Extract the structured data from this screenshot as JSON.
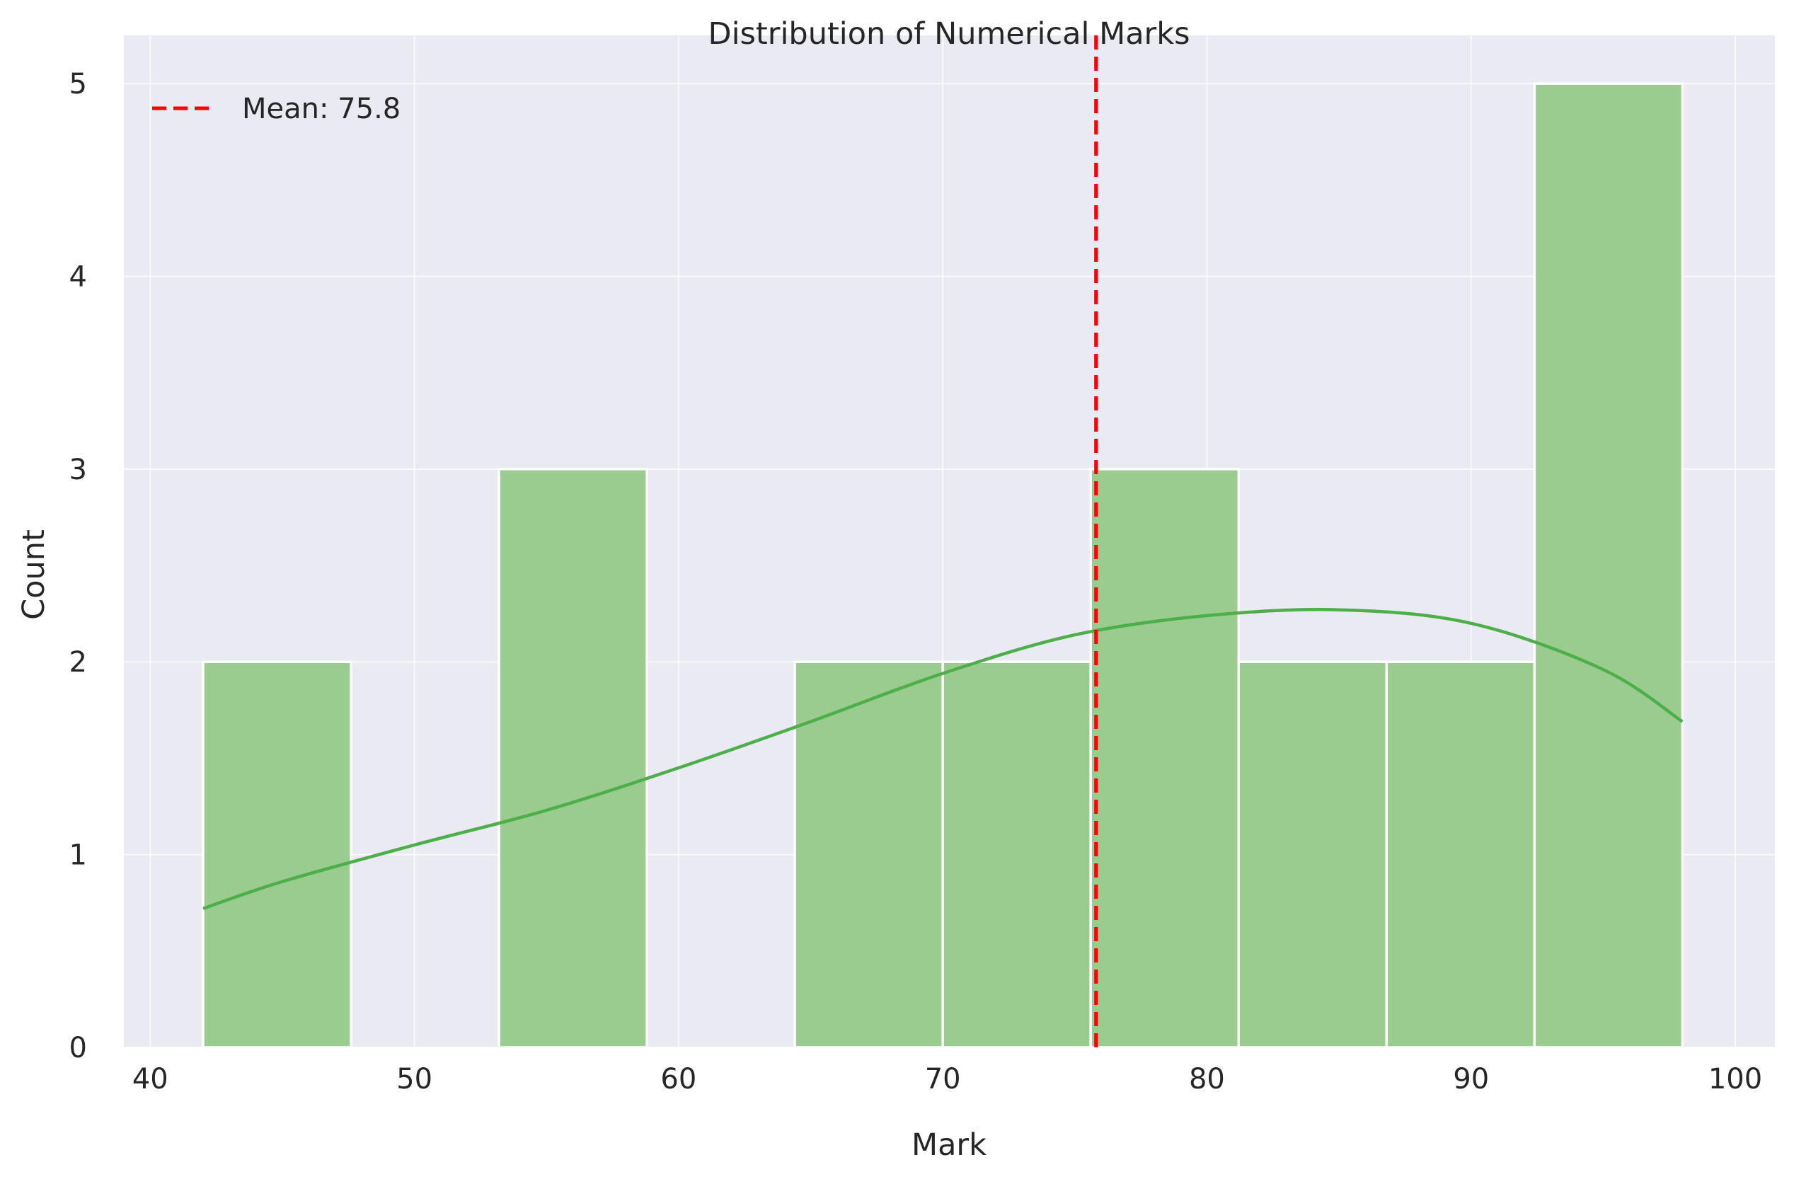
{
  "chart_data": {
    "type": "bar",
    "subtype": "histogram with kde",
    "title": "Distribution of Numerical Marks",
    "xlabel": "Mark",
    "ylabel": "Count",
    "xlim": [
      39,
      101.5
    ],
    "ylim": [
      0,
      5.25
    ],
    "xticks": [
      40,
      50,
      60,
      70,
      80,
      90,
      100
    ],
    "yticks": [
      0,
      1,
      2,
      3,
      4,
      5
    ],
    "grid": true,
    "legend_position": "upper-left",
    "bins": [
      {
        "start": 42.0,
        "end": 47.6,
        "count": 2
      },
      {
        "start": 47.6,
        "end": 53.2,
        "count": 0
      },
      {
        "start": 53.2,
        "end": 58.8,
        "count": 3
      },
      {
        "start": 58.8,
        "end": 64.4,
        "count": 0
      },
      {
        "start": 64.4,
        "end": 70.0,
        "count": 2
      },
      {
        "start": 70.0,
        "end": 75.6,
        "count": 2
      },
      {
        "start": 75.6,
        "end": 81.2,
        "count": 3
      },
      {
        "start": 81.2,
        "end": 86.8,
        "count": 2
      },
      {
        "start": 86.8,
        "end": 92.4,
        "count": 2
      },
      {
        "start": 92.4,
        "end": 98.0,
        "count": 5
      }
    ],
    "kde": {
      "x": [
        42,
        45,
        50,
        55,
        60,
        65,
        70,
        75,
        80,
        85,
        90,
        95,
        98
      ],
      "y": [
        0.72,
        0.86,
        1.05,
        1.23,
        1.45,
        1.69,
        1.94,
        2.14,
        2.24,
        2.27,
        2.2,
        1.96,
        1.69
      ]
    },
    "mean_line": {
      "x": 75.8,
      "label": "Mean: 75.8"
    },
    "colors": {
      "background": "#eaeaf2",
      "grid": "#ffffff",
      "bar_fill": "#9bcc8f",
      "bar_edge": "#ffffff",
      "kde_line": "#4daf4a",
      "mean_line": "#ff0000",
      "text": "#262626"
    }
  }
}
